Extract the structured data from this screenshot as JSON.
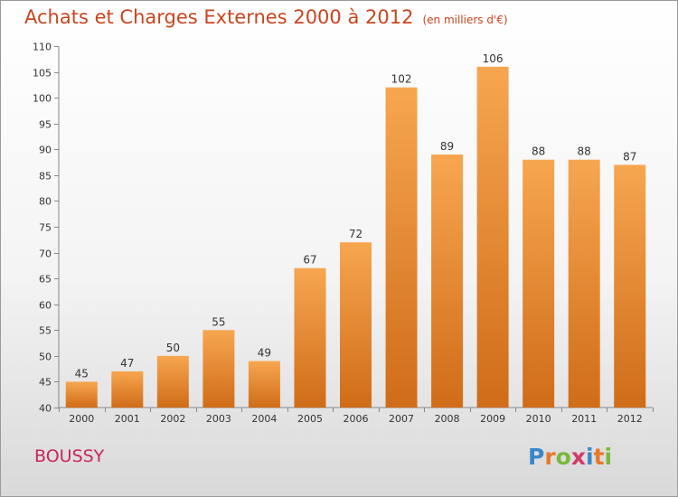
{
  "title": "Achats et Charges Externes 2000 à 2012",
  "unit_note": "(en milliers d'€)",
  "commune": "BOUSSY",
  "logo_text": "Proxiti",
  "colors": {
    "title": "#c9451e",
    "commune": "#c8265a",
    "bar_top": "#f7a650",
    "bar_bottom": "#d06c18"
  },
  "chart_data": {
    "type": "bar",
    "title": "Achats et Charges Externes 2000 à 2012",
    "subtitle": "(en milliers d'€)",
    "xlabel": "",
    "ylabel": "",
    "categories": [
      "2000",
      "2001",
      "2002",
      "2003",
      "2004",
      "2005",
      "2006",
      "2007",
      "2008",
      "2009",
      "2010",
      "2011",
      "2012"
    ],
    "values": [
      45,
      47,
      50,
      55,
      49,
      67,
      72,
      102,
      89,
      106,
      88,
      88,
      87
    ],
    "ylim": [
      40,
      110
    ],
    "yticks": [
      40,
      45,
      50,
      55,
      60,
      65,
      70,
      75,
      80,
      85,
      90,
      95,
      100,
      105,
      110
    ],
    "data_labels": true,
    "grid": false,
    "legend": "none"
  }
}
